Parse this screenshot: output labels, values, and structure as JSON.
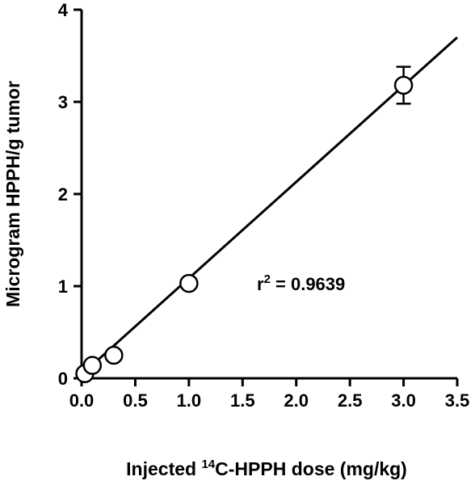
{
  "chart_data": {
    "type": "scatter",
    "xlabel": {
      "pre": "Injected ",
      "sup": "14",
      "post": "C-HPPH dose (mg/kg)"
    },
    "ylabel": "Microgram HPPH/g tumor",
    "xlim": [
      0,
      3.5
    ],
    "ylim": [
      0,
      4
    ],
    "x_ticks": [
      "0.0",
      "0.5",
      "1.0",
      "1.5",
      "2.0",
      "2.5",
      "3.0",
      "3.5"
    ],
    "y_ticks": [
      "0",
      "1",
      "2",
      "3",
      "4"
    ],
    "points": [
      {
        "x": 0.03,
        "y": 0.05
      },
      {
        "x": 0.1,
        "y": 0.14
      },
      {
        "x": 0.3,
        "y": 0.25
      },
      {
        "x": 1.0,
        "y": 1.03
      },
      {
        "x": 3.0,
        "y": 3.18,
        "err": 0.2
      }
    ],
    "fit_line": {
      "x0": 0.0,
      "y0": 0.04,
      "x1": 3.5,
      "y1": 3.7
    },
    "annotation": {
      "pre": "r",
      "sup": "2",
      "post": " = 0.9639"
    },
    "grid": false,
    "colors": {
      "axis": "#000000",
      "marker_fill": "#ffffff",
      "line": "#000000"
    }
  }
}
